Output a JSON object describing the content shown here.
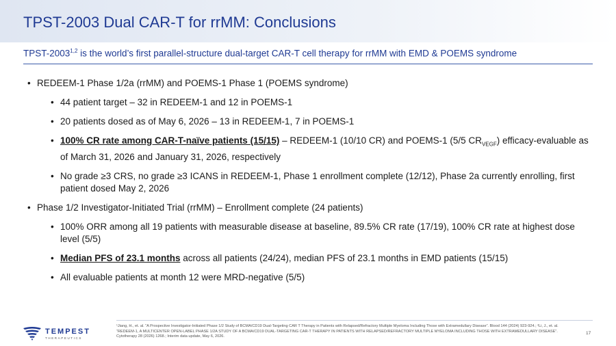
{
  "title": "TPST-2003 Dual CAR-T for rrMM: Conclusions",
  "subtitle": {
    "prefix": "TPST-2003",
    "sup": "1,2",
    "text": " is the world’s first parallel-structure dual-target CAR-T cell therapy for rrMM with EMD & POEMS syndrome"
  },
  "bullets": {
    "b1": "REDEEM-1 Phase 1/2a (rrMM) and POEMS-1 Phase 1 (POEMS syndrome)",
    "b1_1": "44 patient target – 32 in REDEEM-1 and 12 in POEMS-1",
    "b1_2": "20 patients dosed as of May 6, 2026 – 13 in REDEEM-1, 7 in POEMS-1",
    "b1_3_em": "100% CR rate among CAR-T-naïve patients (15/15)",
    "b1_3_a": " – REDEEM-1 (10/10 CR) and POEMS-1 (5/5 CR",
    "b1_3_sub": "VEGF",
    "b1_3_b": ") efficacy-evaluable as of March 31, 2026 and January 31, 2026, respectively",
    "b1_4": "No grade ≥3 CRS, no grade ≥3 ICANS in REDEEM-1, Phase 1 enrollment complete (12/12), Phase 2a currently enrolling, first patient dosed May 2, 2026",
    "b2": "Phase 1/2 Investigator-Initiated Trial (rrMM) – Enrollment complete (24 patients)",
    "b2_1": "100% ORR among all 19 patients with measurable disease at baseline, 89.5% CR rate (17/19), 100% CR rate at highest dose level (5/5)",
    "b2_2_em": "Median PFS of 23.1 months",
    "b2_2_rest": " across all patients (24/24), median PFS of 23.1 months in EMD patients (15/15)",
    "b2_3": "All evaluable patients at month 12 were MRD-negative (5/5)"
  },
  "footnote": "¹Jiang, H., et. al. “A Prospective Investigator-Initiated Phase 1/2 Study of BCMA/CD19 Dual-Targeting CAR T Therapy in Patients with Relapsed/Refractory Multiple Myeloma Including Those with Extramedullary Disease”. Blood 144 (2024) 923-924.; ²Li, J., et. al. “REDEEM-1, A MULTICENTER OPEN-LABEL PHASE 1/2A STUDY OF A BCMA/CD19 DUAL-TARGETING CAR-T THERAPY IN PATIENTS WITH RELAPSED/REFRACTORY MULTIPLE MYELOMA INCLUDING THOSE WITH EXTRAMEDULLARY DISEASE”. Cytotherapy 28 (2026) 1268.; Interim data update, May 6, 2026.",
  "page_number": "17",
  "logo": {
    "name": "TEMPEST",
    "sub": "THERAPEUTICS"
  },
  "colors": {
    "brand_blue": "#1f3a93",
    "rule_blue": "#3b5ba9"
  }
}
